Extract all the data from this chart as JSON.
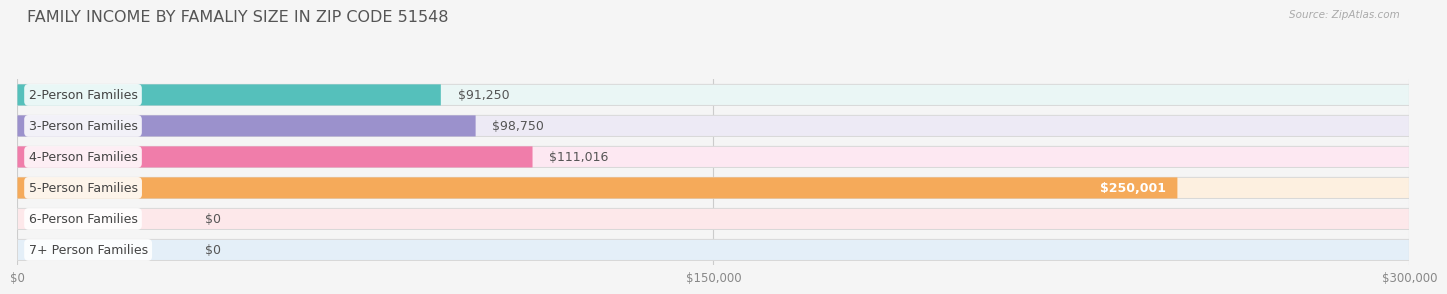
{
  "title": "FAMILY INCOME BY FAMALIY SIZE IN ZIP CODE 51548",
  "source": "Source: ZipAtlas.com",
  "categories": [
    "2-Person Families",
    "3-Person Families",
    "4-Person Families",
    "5-Person Families",
    "6-Person Families",
    "7+ Person Families"
  ],
  "values": [
    91250,
    98750,
    111016,
    250001,
    0,
    0
  ],
  "bar_colors": [
    "#55c0bb",
    "#9b91cc",
    "#f07daa",
    "#f5aa5a",
    "#f0a0a8",
    "#a8cce8"
  ],
  "bar_bg_colors": [
    "#eaf6f5",
    "#edeaf5",
    "#fde8f2",
    "#fdf0e0",
    "#fde8ea",
    "#e4eff8"
  ],
  "value_labels": [
    "$91,250",
    "$98,750",
    "$111,016",
    "$250,001",
    "$0",
    "$0"
  ],
  "xlim": [
    0,
    300000
  ],
  "xticks": [
    0,
    150000,
    300000
  ],
  "xtick_labels": [
    "$0",
    "$150,000",
    "$300,000"
  ],
  "background_color": "#f5f5f5",
  "title_fontsize": 11.5,
  "label_fontsize": 9,
  "value_fontsize": 9,
  "bar_height": 0.68,
  "n_bars": 6
}
